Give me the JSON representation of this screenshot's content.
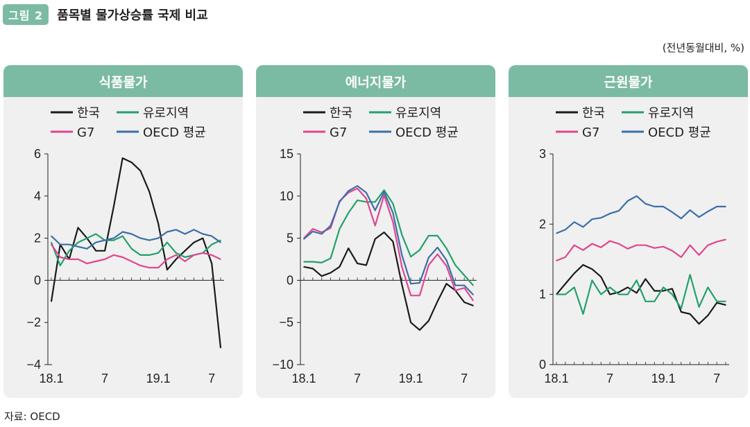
{
  "figure": {
    "badge": "그림 2",
    "title": "품목별 물가상승률 국제 비교",
    "unit_note": "(전년동월대비, %)",
    "source": "자료: OECD"
  },
  "colors": {
    "accent": "#7cbba3",
    "korea": "#1a1a1a",
    "euro": "#22a06b",
    "g7": "#e0458e",
    "oecd": "#3a6ea8"
  },
  "chart_data": [
    {
      "type": "line",
      "title": "식품물가",
      "x_ticks": [
        {
          "pos": 0,
          "label": "18.1"
        },
        {
          "pos": 6,
          "label": "7"
        },
        {
          "pos": 12,
          "label": "19.1"
        },
        {
          "pos": 18,
          "label": "7"
        }
      ],
      "ylim": [
        -4,
        6
      ],
      "yticks": [
        -4,
        -2,
        0,
        2,
        4,
        6
      ],
      "ytick_labels": [
        "−4",
        "−2",
        "0",
        "2",
        "4",
        "6"
      ],
      "legend": [
        "한국",
        "유로지역",
        "G7",
        "OECD 평균"
      ],
      "series": [
        {
          "name": "한국",
          "color": "#1a1a1a",
          "values": [
            -1.0,
            1.7,
            1.0,
            2.5,
            2.0,
            1.4,
            1.4,
            3.5,
            5.8,
            5.6,
            5.2,
            4.2,
            2.7,
            0.5,
            1.0,
            1.4,
            1.8,
            2.0,
            0.8,
            -3.2
          ]
        },
        {
          "name": "유로지역",
          "color": "#22a06b",
          "values": [
            1.8,
            0.7,
            1.4,
            1.8,
            2.0,
            2.2,
            1.9,
            1.9,
            2.1,
            1.5,
            1.2,
            1.2,
            1.3,
            1.8,
            1.3,
            1.1,
            1.2,
            1.3,
            1.7,
            1.9
          ]
        },
        {
          "name": "G7",
          "color": "#e0458e",
          "values": [
            1.7,
            1.1,
            1.0,
            1.0,
            0.8,
            0.9,
            1.0,
            1.2,
            1.1,
            0.9,
            0.7,
            0.6,
            0.6,
            1.0,
            1.2,
            0.9,
            1.2,
            1.3,
            1.2,
            1.0
          ]
        },
        {
          "name": "OECD 평균",
          "color": "#3a6ea8",
          "values": [
            2.1,
            1.7,
            1.7,
            1.6,
            1.5,
            1.8,
            1.9,
            2.0,
            2.3,
            2.2,
            2.0,
            1.9,
            2.0,
            2.3,
            2.4,
            2.2,
            2.4,
            2.2,
            2.1,
            1.8
          ]
        }
      ]
    },
    {
      "type": "line",
      "title": "에너지물가",
      "x_ticks": [
        {
          "pos": 0,
          "label": "18.1"
        },
        {
          "pos": 6,
          "label": "7"
        },
        {
          "pos": 12,
          "label": "19.1"
        },
        {
          "pos": 18,
          "label": "7"
        }
      ],
      "ylim": [
        -10,
        15
      ],
      "yticks": [
        -10,
        -5,
        0,
        5,
        10,
        15
      ],
      "ytick_labels": [
        "−10",
        "−5",
        "0",
        "5",
        "10",
        "15"
      ],
      "legend": [
        "한국",
        "유로지역",
        "G7",
        "OECD 평균"
      ],
      "series": [
        {
          "name": "한국",
          "color": "#1a1a1a",
          "values": [
            1.6,
            1.4,
            0.5,
            0.9,
            1.6,
            3.8,
            2.0,
            1.8,
            4.9,
            5.7,
            4.6,
            -0.5,
            -5.0,
            -5.9,
            -4.8,
            -2.5,
            -0.4,
            -1.2,
            -2.6,
            -3.0
          ]
        },
        {
          "name": "유로지역",
          "color": "#22a06b",
          "values": [
            2.2,
            2.2,
            2.1,
            2.6,
            6.1,
            8.0,
            9.5,
            9.3,
            9.3,
            10.7,
            9.1,
            5.4,
            2.8,
            3.6,
            5.3,
            5.3,
            3.8,
            1.8,
            0.6,
            -0.6
          ]
        },
        {
          "name": "G7",
          "color": "#e0458e",
          "values": [
            5.0,
            6.1,
            5.7,
            6.2,
            9.4,
            10.4,
            10.9,
            9.7,
            6.5,
            10.1,
            6.9,
            1.6,
            -1.8,
            -1.8,
            1.8,
            3.1,
            1.7,
            -1.2,
            -0.9,
            -2.4
          ]
        },
        {
          "name": "OECD 평균",
          "color": "#3a6ea8",
          "values": [
            4.9,
            5.8,
            5.5,
            6.5,
            9.3,
            10.6,
            11.2,
            10.4,
            8.3,
            10.5,
            8.0,
            3.0,
            -0.4,
            -0.3,
            2.7,
            3.9,
            2.4,
            -0.6,
            -0.6,
            -1.7
          ]
        }
      ]
    },
    {
      "type": "line",
      "title": "근원물가",
      "x_ticks": [
        {
          "pos": 0,
          "label": "18.1"
        },
        {
          "pos": 6,
          "label": "7"
        },
        {
          "pos": 12,
          "label": "19.1"
        },
        {
          "pos": 18,
          "label": "7"
        }
      ],
      "ylim": [
        0,
        3
      ],
      "yticks": [
        0,
        1,
        2,
        3
      ],
      "ytick_labels": [
        "0",
        "1",
        "2",
        "3"
      ],
      "legend": [
        "한국",
        "유로지역",
        "G7",
        "OECD 평균"
      ],
      "series": [
        {
          "name": "한국",
          "color": "#1a1a1a",
          "values": [
            1.0,
            1.15,
            1.3,
            1.42,
            1.36,
            1.25,
            1.0,
            1.03,
            1.1,
            1.02,
            1.22,
            1.05,
            1.05,
            1.08,
            0.75,
            0.72,
            0.58,
            0.7,
            0.88,
            0.85
          ]
        },
        {
          "name": "유로지역",
          "color": "#22a06b",
          "values": [
            1.0,
            1.0,
            1.1,
            0.72,
            1.2,
            1.0,
            1.1,
            1.0,
            1.0,
            1.2,
            0.9,
            0.9,
            1.1,
            1.0,
            0.8,
            1.28,
            0.82,
            1.1,
            0.9,
            0.9
          ]
        },
        {
          "name": "G7",
          "color": "#e0458e",
          "values": [
            1.48,
            1.53,
            1.7,
            1.63,
            1.72,
            1.67,
            1.76,
            1.72,
            1.65,
            1.7,
            1.7,
            1.66,
            1.68,
            1.62,
            1.53,
            1.7,
            1.56,
            1.7,
            1.75,
            1.78
          ]
        },
        {
          "name": "OECD 평균",
          "color": "#3a6ea8",
          "values": [
            1.87,
            1.92,
            2.03,
            1.96,
            2.07,
            2.09,
            2.15,
            2.19,
            2.33,
            2.4,
            2.29,
            2.25,
            2.25,
            2.17,
            2.08,
            2.2,
            2.1,
            2.18,
            2.25,
            2.25
          ]
        }
      ]
    }
  ]
}
